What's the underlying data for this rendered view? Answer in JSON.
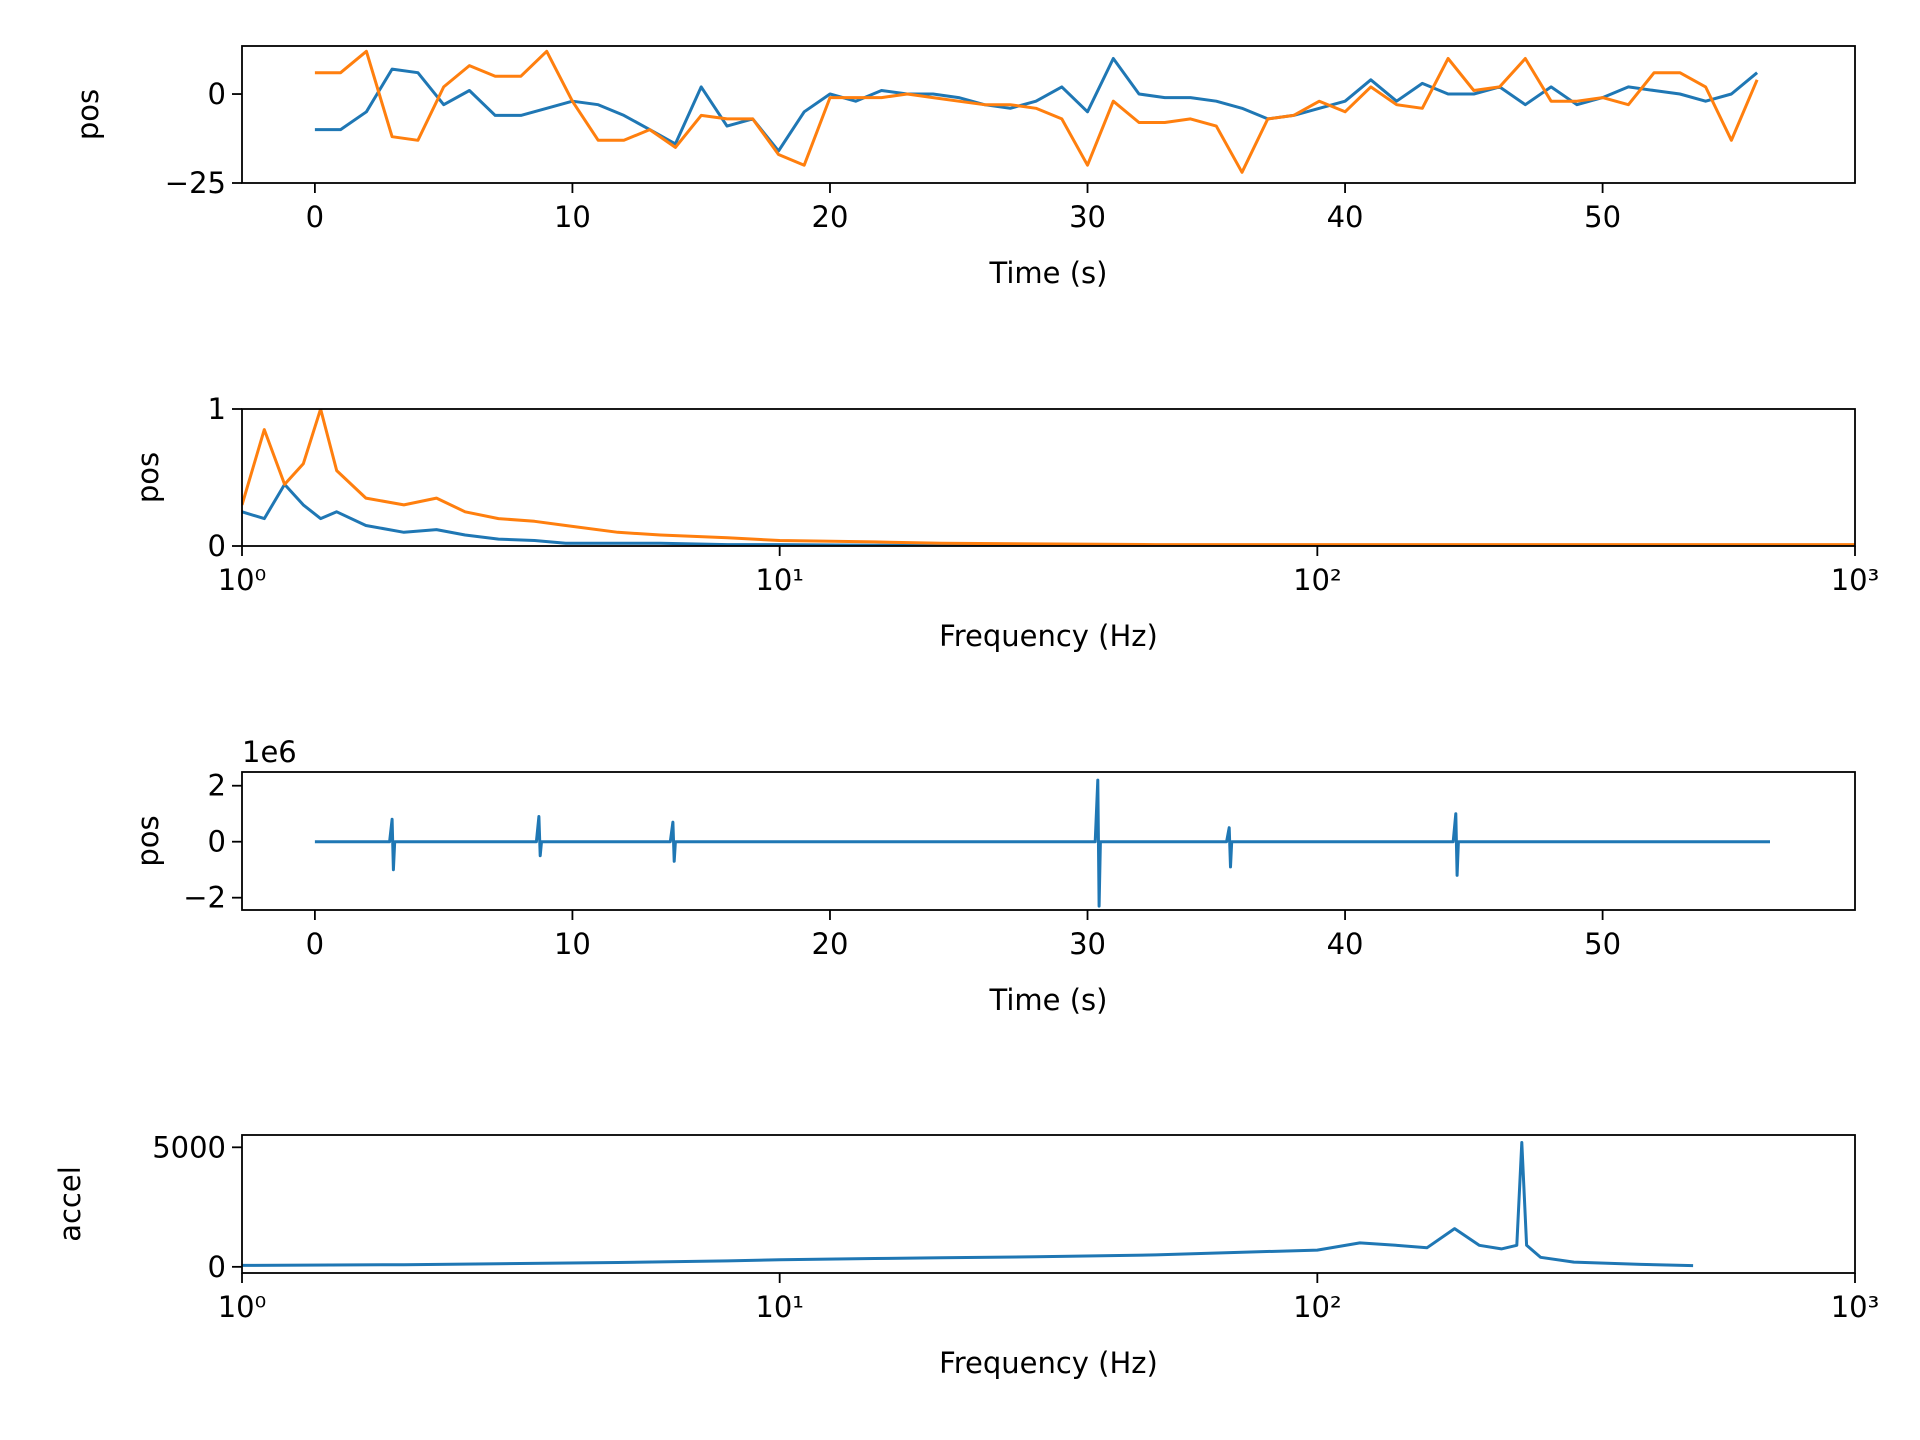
{
  "chart_data": [
    {
      "type": "line",
      "xlabel": "Time (s)",
      "ylabel": "pos",
      "x": [
        0,
        1,
        2,
        3,
        4,
        5,
        6,
        7,
        8,
        9,
        10,
        11,
        12,
        13,
        14,
        15,
        16,
        17,
        18,
        19,
        20,
        21,
        22,
        23,
        24,
        25,
        26,
        27,
        28,
        29,
        30,
        31,
        32,
        33,
        34,
        35,
        36,
        37,
        38,
        39,
        40,
        41,
        42,
        43,
        44,
        45,
        46,
        47,
        48,
        49,
        50,
        51,
        52,
        53,
        54,
        55,
        56
      ],
      "series": [
        {
          "color": "#1f77b4",
          "values": [
            -10,
            -10,
            -5,
            7,
            6,
            -3,
            1,
            -6,
            -6,
            -4,
            -2,
            -3,
            -6,
            -10,
            -14,
            2,
            -9,
            -7,
            -16,
            -5,
            0,
            -2,
            1,
            0,
            0,
            -1,
            -3,
            -4,
            -2,
            2,
            -5,
            10,
            0,
            -1,
            -1,
            -2,
            -4,
            -7,
            -6,
            -4,
            -2,
            4,
            -2,
            3,
            0,
            0,
            2,
            -3,
            2,
            -3,
            -1,
            2,
            1,
            0,
            -2,
            0,
            6
          ]
        },
        {
          "color": "#ff7f0e",
          "values": [
            6,
            6,
            12,
            -12,
            -13,
            2,
            8,
            5,
            5,
            12,
            -2,
            -13,
            -13,
            -10,
            -15,
            -6,
            -7,
            -7,
            -17,
            -20,
            -1,
            -1,
            -1,
            0,
            -1,
            -2,
            -3,
            -3,
            -4,
            -7,
            -20,
            -2,
            -8,
            -8,
            -7,
            -9,
            -22,
            -7,
            -6,
            -2,
            -5,
            2,
            -3,
            -4,
            10,
            1,
            2,
            10,
            -2,
            -2,
            -1,
            -3,
            6,
            6,
            2,
            -13,
            4
          ]
        }
      ],
      "xlim": [
        -2.83,
        59.8
      ],
      "xticks": [
        0,
        10,
        20,
        30,
        40,
        50
      ],
      "ylim": [
        -25,
        13.5
      ],
      "yticks": [
        {
          "value": -25,
          "label": "−25"
        },
        0
      ]
    },
    {
      "type": "line",
      "xlabel": "Frequency (Hz)",
      "ylabel": "pos",
      "xscale": "log",
      "x": [
        1,
        1.1,
        1.2,
        1.3,
        1.4,
        1.5,
        1.7,
        2,
        2.3,
        2.6,
        3,
        3.5,
        4,
        5,
        6,
        8,
        10,
        15,
        20,
        30,
        50,
        100,
        200,
        500,
        1000
      ],
      "series": [
        {
          "color": "#1f77b4",
          "values": [
            0.25,
            0.2,
            0.45,
            0.3,
            0.2,
            0.25,
            0.15,
            0.1,
            0.12,
            0.08,
            0.05,
            0.04,
            0.02,
            0.02,
            0.02,
            0.01,
            0.01,
            0.005,
            0.005,
            0.004,
            0.003,
            0.003,
            0.002,
            0.002,
            0.002
          ]
        },
        {
          "color": "#ff7f0e",
          "values": [
            0.3,
            0.85,
            0.45,
            0.6,
            1.0,
            0.55,
            0.35,
            0.3,
            0.35,
            0.25,
            0.2,
            0.18,
            0.15,
            0.1,
            0.08,
            0.06,
            0.04,
            0.03,
            0.02,
            0.015,
            0.01,
            0.01,
            0.01,
            0.01,
            0.01
          ]
        }
      ],
      "xlim": [
        1,
        1000
      ],
      "xticks": [
        {
          "value": 1,
          "label": "10⁰"
        },
        {
          "value": 10,
          "label": "10¹"
        },
        {
          "value": 100,
          "label": "10²"
        },
        {
          "value": 1000,
          "label": "10³"
        }
      ],
      "ylim": [
        0,
        1
      ],
      "yticks": [
        0,
        1
      ]
    },
    {
      "type": "line",
      "xlabel": "Time (s)",
      "ylabel": "pos",
      "offset_label": "1e6",
      "x": [
        0,
        2.9,
        3,
        3.05,
        3.1,
        8.6,
        8.7,
        8.75,
        8.8,
        13.8,
        13.9,
        13.95,
        14,
        30.3,
        30.4,
        30.45,
        30.5,
        35.4,
        35.5,
        35.55,
        35.6,
        44.2,
        44.3,
        44.35,
        44.4,
        56.5
      ],
      "series": [
        {
          "color": "#1f77b4",
          "values": [
            0,
            0,
            0.8,
            -1.0,
            0,
            0,
            0.9,
            -0.5,
            0,
            0,
            0.7,
            -0.7,
            0,
            0,
            2.2,
            -2.3,
            0,
            0,
            0.5,
            -0.9,
            0,
            0,
            1.0,
            -1.2,
            0,
            0
          ]
        }
      ],
      "xlim": [
        -2.83,
        59.8
      ],
      "xticks": [
        0,
        10,
        20,
        30,
        40,
        50
      ],
      "ylim": [
        -2.44,
        2.49
      ],
      "yticks": [
        {
          "value": -2,
          "label": "−2"
        },
        0,
        2
      ]
    },
    {
      "type": "line",
      "xlabel": "Frequency (Hz)",
      "ylabel": "accel",
      "xscale": "log",
      "x": [
        1,
        2,
        3,
        5,
        8,
        10,
        15,
        20,
        30,
        50,
        70,
        100,
        120,
        140,
        160,
        180,
        200,
        220,
        235,
        240,
        245,
        260,
        300,
        400,
        500
      ],
      "series": [
        {
          "color": "#1f77b4",
          "values": [
            60,
            90,
            130,
            180,
            250,
            300,
            350,
            380,
            420,
            500,
            600,
            700,
            1000,
            900,
            800,
            1600,
            900,
            750,
            900,
            5200,
            900,
            400,
            200,
            100,
            50
          ]
        }
      ],
      "xlim": [
        1,
        1000
      ],
      "xticks": [
        {
          "value": 1,
          "label": "10⁰"
        },
        {
          "value": 10,
          "label": "10¹"
        },
        {
          "value": 100,
          "label": "10²"
        },
        {
          "value": 1000,
          "label": "10³"
        }
      ],
      "ylim": [
        -258,
        5515
      ],
      "yticks": [
        0,
        5000
      ]
    }
  ]
}
